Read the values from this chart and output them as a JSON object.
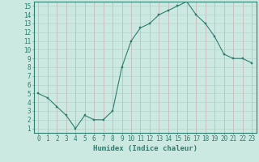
{
  "x": [
    0,
    1,
    2,
    3,
    4,
    5,
    6,
    7,
    8,
    9,
    10,
    11,
    12,
    13,
    14,
    15,
    16,
    17,
    18,
    19,
    20,
    21,
    22,
    23
  ],
  "y": [
    5.0,
    4.5,
    3.5,
    2.5,
    1.0,
    2.5,
    2.0,
    2.0,
    3.0,
    8.0,
    11.0,
    12.5,
    13.0,
    14.0,
    14.5,
    15.0,
    15.5,
    14.0,
    13.0,
    11.5,
    9.5,
    9.0,
    9.0,
    8.5
  ],
  "line_color": "#2d7d6e",
  "marker_color": "#2d7d6e",
  "bg_color": "#cce9e1",
  "grid_color_v": "#c8a0a8",
  "grid_color_h": "#b0cec8",
  "xlabel": "Humidex (Indice chaleur)",
  "xlim": [
    -0.5,
    23.5
  ],
  "ylim": [
    0.5,
    15.5
  ],
  "xticks": [
    0,
    1,
    2,
    3,
    4,
    5,
    6,
    7,
    8,
    9,
    10,
    11,
    12,
    13,
    14,
    15,
    16,
    17,
    18,
    19,
    20,
    21,
    22,
    23
  ],
  "yticks": [
    1,
    2,
    3,
    4,
    5,
    6,
    7,
    8,
    9,
    10,
    11,
    12,
    13,
    14,
    15
  ],
  "tick_label_color": "#2d7d6e",
  "xlabel_color": "#2d7d6e",
  "axis_color": "#2d7d6e",
  "font_size_ticks": 5.5,
  "font_size_xlabel": 6.5,
  "linewidth": 0.8,
  "markersize": 2.0
}
